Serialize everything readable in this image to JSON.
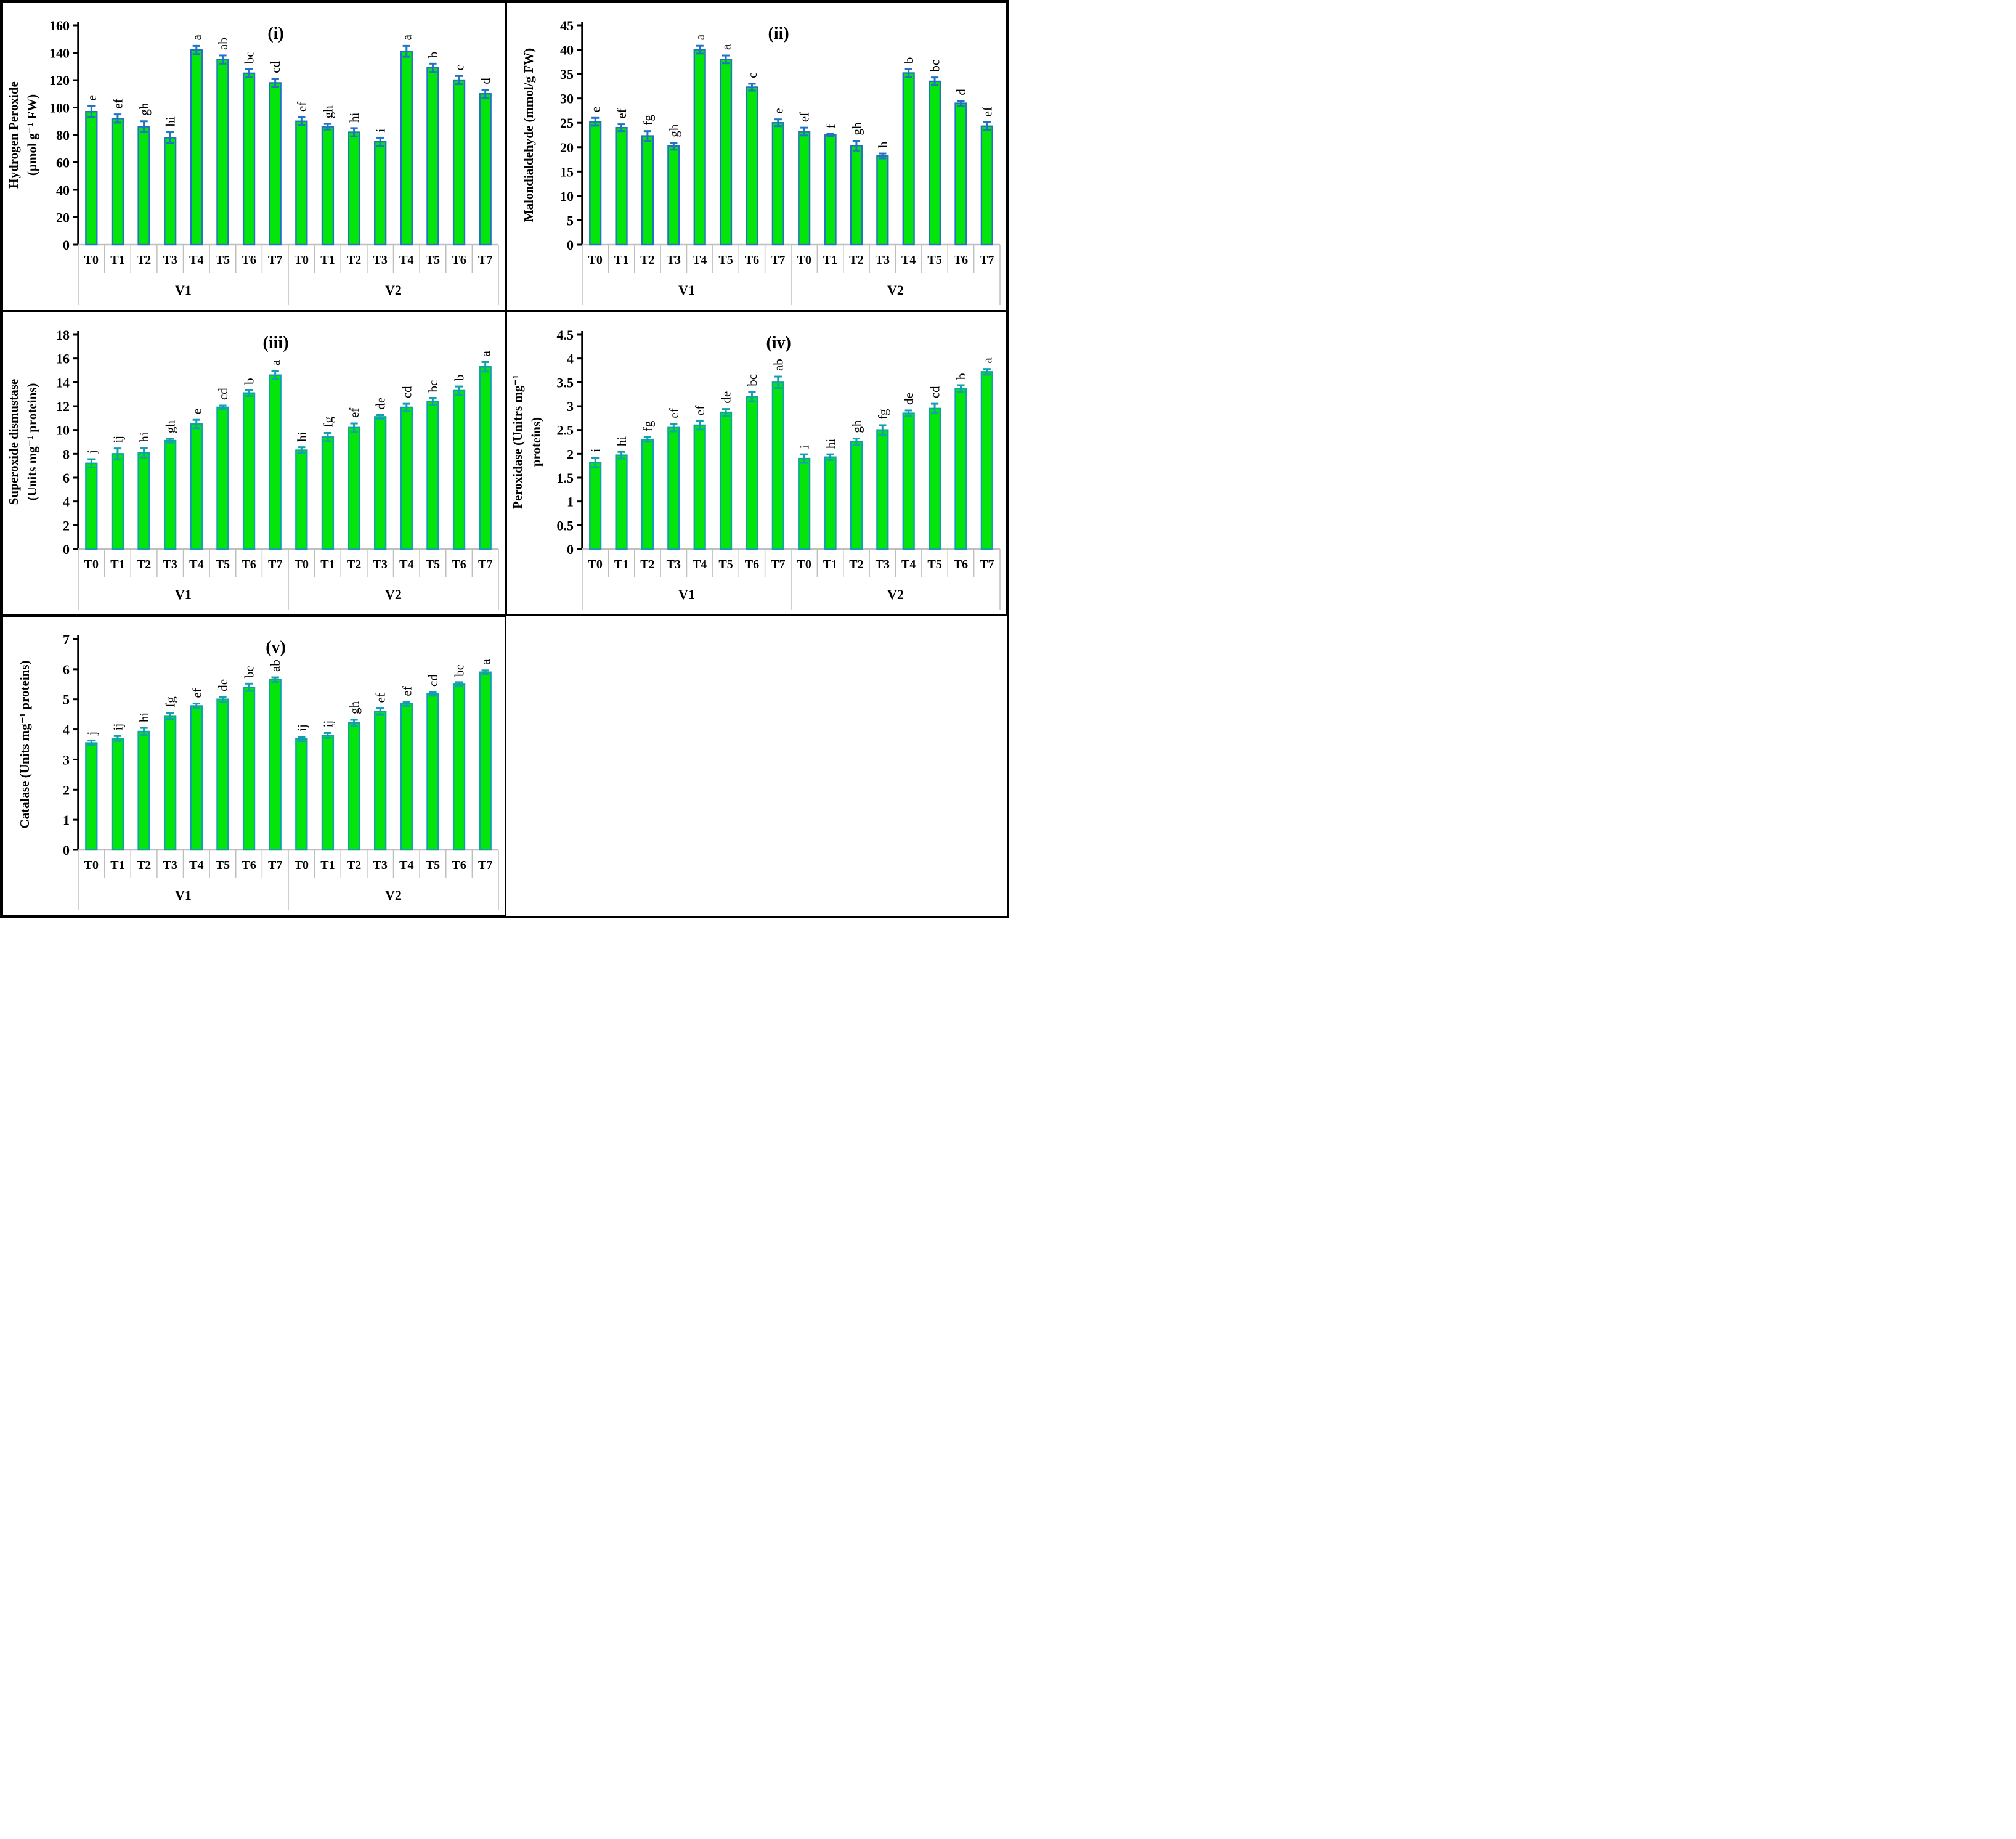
{
  "figure": {
    "background": "#ffffff",
    "border_color": "#000000",
    "bar_fill": "#04e50b",
    "grid_line_color": "#bfbfbf",
    "axis_color": "#000000"
  },
  "chart_data": [
    {
      "id": "i",
      "type": "bar",
      "panel_label": "(i)",
      "accent": "#2273c3",
      "ylabel_lines": [
        "Hydrogen Peroxide",
        "(µmol g⁻¹ FW)"
      ],
      "ylim": [
        0,
        160
      ],
      "ystep": 20,
      "categories": [
        "T0",
        "T1",
        "T2",
        "T3",
        "T4",
        "T5",
        "T6",
        "T7"
      ],
      "groups": [
        {
          "label": "V1",
          "values": [
            97,
            92,
            86,
            78,
            142,
            135,
            125,
            118
          ],
          "errors": [
            4,
            3,
            4,
            4,
            3,
            3,
            3,
            3
          ],
          "letters": [
            "e",
            "ef",
            "gh",
            "hi",
            "a",
            "ab",
            "bc",
            "cd"
          ]
        },
        {
          "label": "V2",
          "values": [
            90,
            86,
            82,
            75,
            141,
            129,
            120,
            110
          ],
          "errors": [
            3,
            2,
            3,
            3,
            4,
            3,
            3,
            3
          ],
          "letters": [
            "ef",
            "gh",
            "hi",
            "i",
            "a",
            "b",
            "c",
            "d"
          ]
        }
      ]
    },
    {
      "id": "ii",
      "type": "bar",
      "panel_label": "(ii)",
      "accent": "#2273c3",
      "ylabel_lines": [
        "Malondialdehyde (mmol/g FW)"
      ],
      "ylim": [
        0,
        45
      ],
      "ystep": 5,
      "categories": [
        "T0",
        "T1",
        "T2",
        "T3",
        "T4",
        "T5",
        "T6",
        "T7"
      ],
      "groups": [
        {
          "label": "V1",
          "values": [
            25.2,
            24.0,
            22.3,
            20.2,
            40.0,
            38.0,
            32.3,
            25.0
          ],
          "errors": [
            0.8,
            0.7,
            1.0,
            0.7,
            0.8,
            0.8,
            0.7,
            0.7
          ],
          "letters": [
            "e",
            "ef",
            "fg",
            "gh",
            "a",
            "a",
            "c",
            "e"
          ]
        },
        {
          "label": "V2",
          "values": [
            23.2,
            22.5,
            20.3,
            18.2,
            35.2,
            33.5,
            29.0,
            24.3
          ],
          "errors": [
            0.8,
            0.2,
            1.0,
            0.5,
            0.8,
            0.8,
            0.5,
            0.8
          ],
          "letters": [
            "ef",
            "f",
            "gh",
            "h",
            "b",
            "bc",
            "d",
            "ef"
          ]
        }
      ]
    },
    {
      "id": "iii",
      "type": "bar",
      "panel_label": "(iii)",
      "accent": "#129fae",
      "ylabel_lines": [
        "Superoxide dismustase",
        "(Units mg⁻¹ proteins)"
      ],
      "ylim": [
        0,
        18
      ],
      "ystep": 2,
      "categories": [
        "T0",
        "T1",
        "T2",
        "T3",
        "T4",
        "T5",
        "T6",
        "T7"
      ],
      "groups": [
        {
          "label": "V1",
          "values": [
            7.2,
            8.0,
            8.1,
            9.1,
            10.5,
            11.9,
            13.1,
            14.6
          ],
          "errors": [
            0.35,
            0.45,
            0.4,
            0.15,
            0.35,
            0.15,
            0.25,
            0.35
          ],
          "letters": [
            "j",
            "ij",
            "hi",
            "gh",
            "e",
            "cd",
            "b",
            "a"
          ]
        },
        {
          "label": "V2",
          "values": [
            8.3,
            9.4,
            10.2,
            11.1,
            11.9,
            12.4,
            13.3,
            15.3
          ],
          "errors": [
            0.25,
            0.35,
            0.35,
            0.15,
            0.3,
            0.3,
            0.35,
            0.4
          ],
          "letters": [
            "hi",
            "fg",
            "ef",
            "de",
            "cd",
            "bc",
            "b",
            "a"
          ]
        }
      ]
    },
    {
      "id": "iv",
      "type": "bar",
      "panel_label": "(iv)",
      "accent": "#129fae",
      "ylabel_lines": [
        "Peroxidase (Unitrs mg⁻¹",
        "proteins)"
      ],
      "ylim": [
        0,
        4.5
      ],
      "ystep": 0.5,
      "categories": [
        "T0",
        "T1",
        "T2",
        "T3",
        "T4",
        "T5",
        "T6",
        "T7"
      ],
      "groups": [
        {
          "label": "V1",
          "values": [
            1.82,
            1.97,
            2.3,
            2.55,
            2.6,
            2.87,
            3.2,
            3.5
          ],
          "errors": [
            0.1,
            0.07,
            0.05,
            0.08,
            0.09,
            0.07,
            0.1,
            0.12
          ],
          "letters": [
            "i",
            "hi",
            "fg",
            "ef",
            "ef",
            "de",
            "bc",
            "ab"
          ]
        },
        {
          "label": "V2",
          "values": [
            1.9,
            1.93,
            2.25,
            2.5,
            2.85,
            2.95,
            3.37,
            3.72
          ],
          "errors": [
            0.09,
            0.06,
            0.07,
            0.1,
            0.06,
            0.1,
            0.07,
            0.06
          ],
          "letters": [
            "i",
            "hi",
            "gh",
            "fg",
            "de",
            "cd",
            "b",
            "a"
          ]
        }
      ]
    },
    {
      "id": "v",
      "type": "bar",
      "panel_label": "(v)",
      "accent": "#129fae",
      "ylabel_lines": [
        "Catalase (Units mg⁻¹ proteins)"
      ],
      "ylim": [
        0,
        7
      ],
      "ystep": 1,
      "categories": [
        "T0",
        "T1",
        "T2",
        "T3",
        "T4",
        "T5",
        "T6",
        "T7"
      ],
      "groups": [
        {
          "label": "V1",
          "values": [
            3.55,
            3.7,
            3.93,
            4.45,
            4.78,
            5.0,
            5.4,
            5.65
          ],
          "errors": [
            0.08,
            0.08,
            0.12,
            0.1,
            0.08,
            0.08,
            0.12,
            0.08
          ],
          "letters": [
            "j",
            "ij",
            "hi",
            "fg",
            "ef",
            "de",
            "bc",
            "ab"
          ]
        },
        {
          "label": "V2",
          "values": [
            3.68,
            3.8,
            4.22,
            4.6,
            4.85,
            5.18,
            5.5,
            5.9
          ],
          "errors": [
            0.07,
            0.08,
            0.1,
            0.1,
            0.07,
            0.06,
            0.07,
            0.06
          ],
          "letters": [
            "ij",
            "ij",
            "gh",
            "ef",
            "ef",
            "cd",
            "bc",
            "a"
          ]
        }
      ]
    }
  ]
}
